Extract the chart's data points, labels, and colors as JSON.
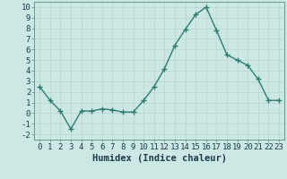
{
  "x": [
    0,
    1,
    2,
    3,
    4,
    5,
    6,
    7,
    8,
    9,
    10,
    11,
    12,
    13,
    14,
    15,
    16,
    17,
    18,
    19,
    20,
    21,
    22,
    23
  ],
  "y": [
    2.5,
    1.2,
    0.2,
    -1.5,
    0.2,
    0.2,
    0.4,
    0.3,
    0.1,
    0.1,
    1.2,
    2.5,
    4.2,
    6.4,
    7.9,
    9.3,
    10.0,
    7.8,
    5.5,
    5.0,
    4.5,
    3.2,
    1.2,
    1.2
  ],
  "line_color": "#2e7d6e",
  "marker": "+",
  "marker_size": 4,
  "bg_color": "#cce8e4",
  "grid_color": "#b8d4d0",
  "xlabel": "Humidex (Indice chaleur)",
  "xlabel_fontsize": 7.5,
  "xlim": [
    -0.5,
    23.5
  ],
  "ylim": [
    -2.5,
    10.5
  ],
  "yticks": [
    -2,
    -1,
    0,
    1,
    2,
    3,
    4,
    5,
    6,
    7,
    8,
    9,
    10
  ],
  "xticks": [
    0,
    1,
    2,
    3,
    4,
    5,
    6,
    7,
    8,
    9,
    10,
    11,
    12,
    13,
    14,
    15,
    16,
    17,
    18,
    19,
    20,
    21,
    22,
    23
  ],
  "tick_fontsize": 6.5,
  "line_width": 1.0
}
